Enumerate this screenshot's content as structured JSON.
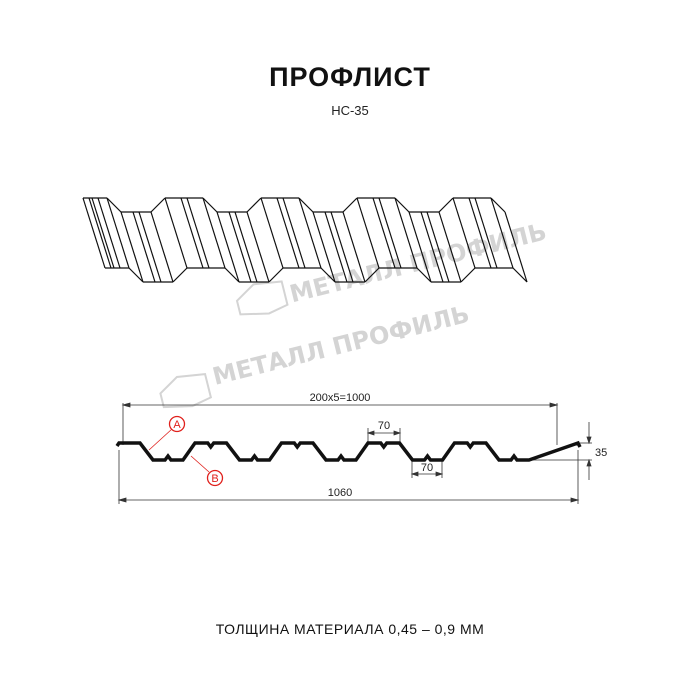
{
  "title": "ПРОФЛИСТ",
  "subtitle": "НС-35",
  "watermark": "МЕТАЛЛ ПРОФИЛЬ",
  "dimensions": {
    "pitch_total": "200x5=1000",
    "top_width": "70",
    "bottom_width": "70",
    "height": "35",
    "total_width": "1060",
    "marker_a": "A",
    "marker_b": "B"
  },
  "footer": "ТОЛЩИНА МАТЕРИАЛА 0,45 – 0,9 ММ",
  "colors": {
    "line": "#111111",
    "marker": "#e0201c",
    "watermark": "#d4d4d4"
  }
}
